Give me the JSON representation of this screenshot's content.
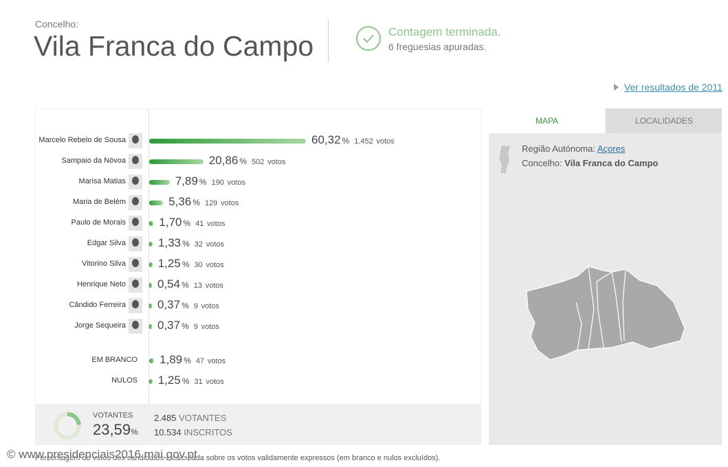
{
  "header": {
    "label": "Concelho:",
    "title": "Vila Franca do Campo",
    "status": "Contagem terminada.",
    "status_detail": "6 freguesias apuradas."
  },
  "link": "Ver resultados de 2011",
  "results": {
    "categories": [
      "Marcelo Rebelo de Sousa",
      "Sampaio da Nóvoa",
      "Marisa Matias",
      "Maria de Belém",
      "Paulo de Morais",
      "Edgar Silva",
      "Vitorino Silva",
      "Henrique Neto",
      "Cândido Ferreira",
      "Jorge Sequeira",
      "EM BRANCO",
      "NULOS"
    ],
    "values": [
      60.32,
      20.86,
      7.89,
      5.36,
      1.7,
      1.33,
      1.25,
      0.54,
      0.37,
      0.37,
      1.89,
      1.25
    ],
    "value_labels": [
      "60,32",
      "20,86",
      "7,89",
      "5,36",
      "1,70",
      "1,33",
      "1,25",
      "0,54",
      "0,37",
      "0,37",
      "1,89",
      "1,25"
    ],
    "votes": [
      "1.452",
      "502",
      "190",
      "129",
      "41",
      "32",
      "30",
      "13",
      "9",
      "9",
      "47",
      "31"
    ],
    "percent_unit": "%",
    "votes_unit": "votos"
  },
  "footer": {
    "turnout_label": "VOTANTES",
    "turnout": 23.59,
    "turnout_value_label": "23,59",
    "percent_unit": "%",
    "voters": "2.485",
    "voters_label": "VOTANTES",
    "registered": "10.534",
    "registered_label": "INSCRITOS"
  },
  "footnote": "Percentagem de votos dos candidatos é calculada sobre os votos validamente expressos (em branco e nulos excluídos).",
  "watermark": "© www.presidenciais2016.mai.gov.pt",
  "side_panel": {
    "tabs": [
      "MAPA",
      "LOCALIDADES"
    ],
    "region_label": "Região Autónoma:",
    "region": "Açores",
    "concelho_label": "Concelho:",
    "concelho": "Vila Franca do Campo"
  }
}
